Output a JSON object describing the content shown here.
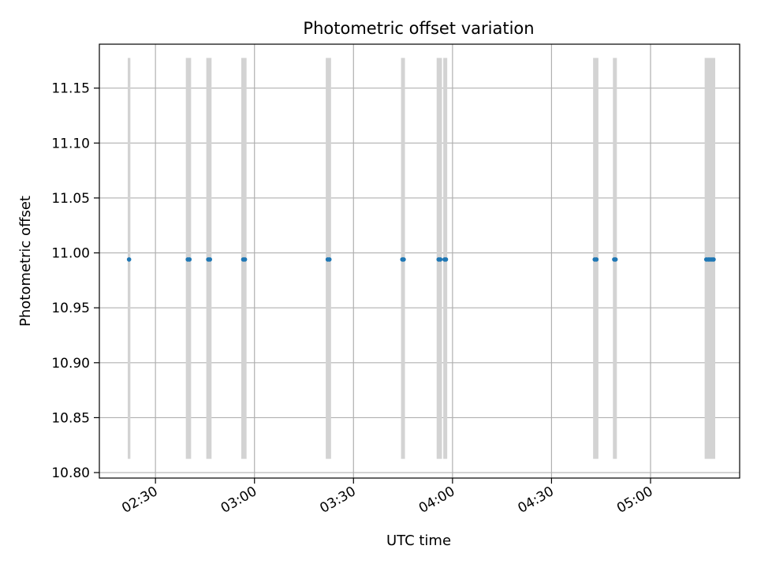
{
  "chart_data": {
    "type": "scatter",
    "title": "Photometric offset variation",
    "xlabel": "UTC time",
    "ylabel": "Photometric offset",
    "xlim": [
      "02:13",
      "05:27"
    ],
    "ylim": [
      10.795,
      11.19
    ],
    "xticks": [
      "02:30",
      "03:00",
      "03:30",
      "04:00",
      "04:30",
      "05:00"
    ],
    "yticks": [
      "10.80",
      "10.85",
      "10.90",
      "10.95",
      "11.00",
      "11.05",
      "11.10",
      "11.15"
    ],
    "grid": true,
    "colors": {
      "points": "#1f77b4",
      "bands": "#d3d3d3",
      "grid": "#b0b0b0"
    },
    "bands": {
      "y_range": [
        10.8125,
        11.1775
      ],
      "intervals": [
        [
          "02:21.6",
          "02:22.4"
        ],
        [
          "02:39.2",
          "02:40.8"
        ],
        [
          "02:45.4",
          "02:47.0"
        ],
        [
          "02:56.0",
          "02:57.6"
        ],
        [
          "03:21.6",
          "03:23.2"
        ],
        [
          "03:44.4",
          "03:45.6"
        ],
        [
          "03:55.2",
          "03:56.8"
        ],
        [
          "03:57.2",
          "03:58.4"
        ],
        [
          "04:42.6",
          "04:44.2"
        ],
        [
          "04:48.6",
          "04:49.8"
        ],
        [
          "05:16.4",
          "05:19.6"
        ]
      ]
    },
    "points": [
      {
        "x": "02:22.0",
        "y": 10.994
      },
      {
        "x": "02:39.8",
        "y": 10.994
      },
      {
        "x": "02:40.3",
        "y": 10.994
      },
      {
        "x": "02:46.0",
        "y": 10.994
      },
      {
        "x": "02:46.5",
        "y": 10.994
      },
      {
        "x": "02:56.6",
        "y": 10.994
      },
      {
        "x": "02:57.1",
        "y": 10.994
      },
      {
        "x": "03:22.2",
        "y": 10.994
      },
      {
        "x": "03:22.7",
        "y": 10.994
      },
      {
        "x": "03:44.8",
        "y": 10.994
      },
      {
        "x": "03:45.2",
        "y": 10.994
      },
      {
        "x": "03:55.8",
        "y": 10.994
      },
      {
        "x": "03:56.3",
        "y": 10.994
      },
      {
        "x": "03:57.6",
        "y": 10.994
      },
      {
        "x": "03:58.0",
        "y": 10.994
      },
      {
        "x": "04:43.1",
        "y": 10.994
      },
      {
        "x": "04:43.6",
        "y": 10.994
      },
      {
        "x": "04:49.0",
        "y": 10.994
      },
      {
        "x": "04:49.4",
        "y": 10.994
      },
      {
        "x": "05:16.9",
        "y": 10.994
      },
      {
        "x": "05:17.5",
        "y": 10.994
      },
      {
        "x": "05:18.0",
        "y": 10.994
      },
      {
        "x": "05:18.6",
        "y": 10.994
      },
      {
        "x": "05:19.1",
        "y": 10.994
      }
    ]
  }
}
